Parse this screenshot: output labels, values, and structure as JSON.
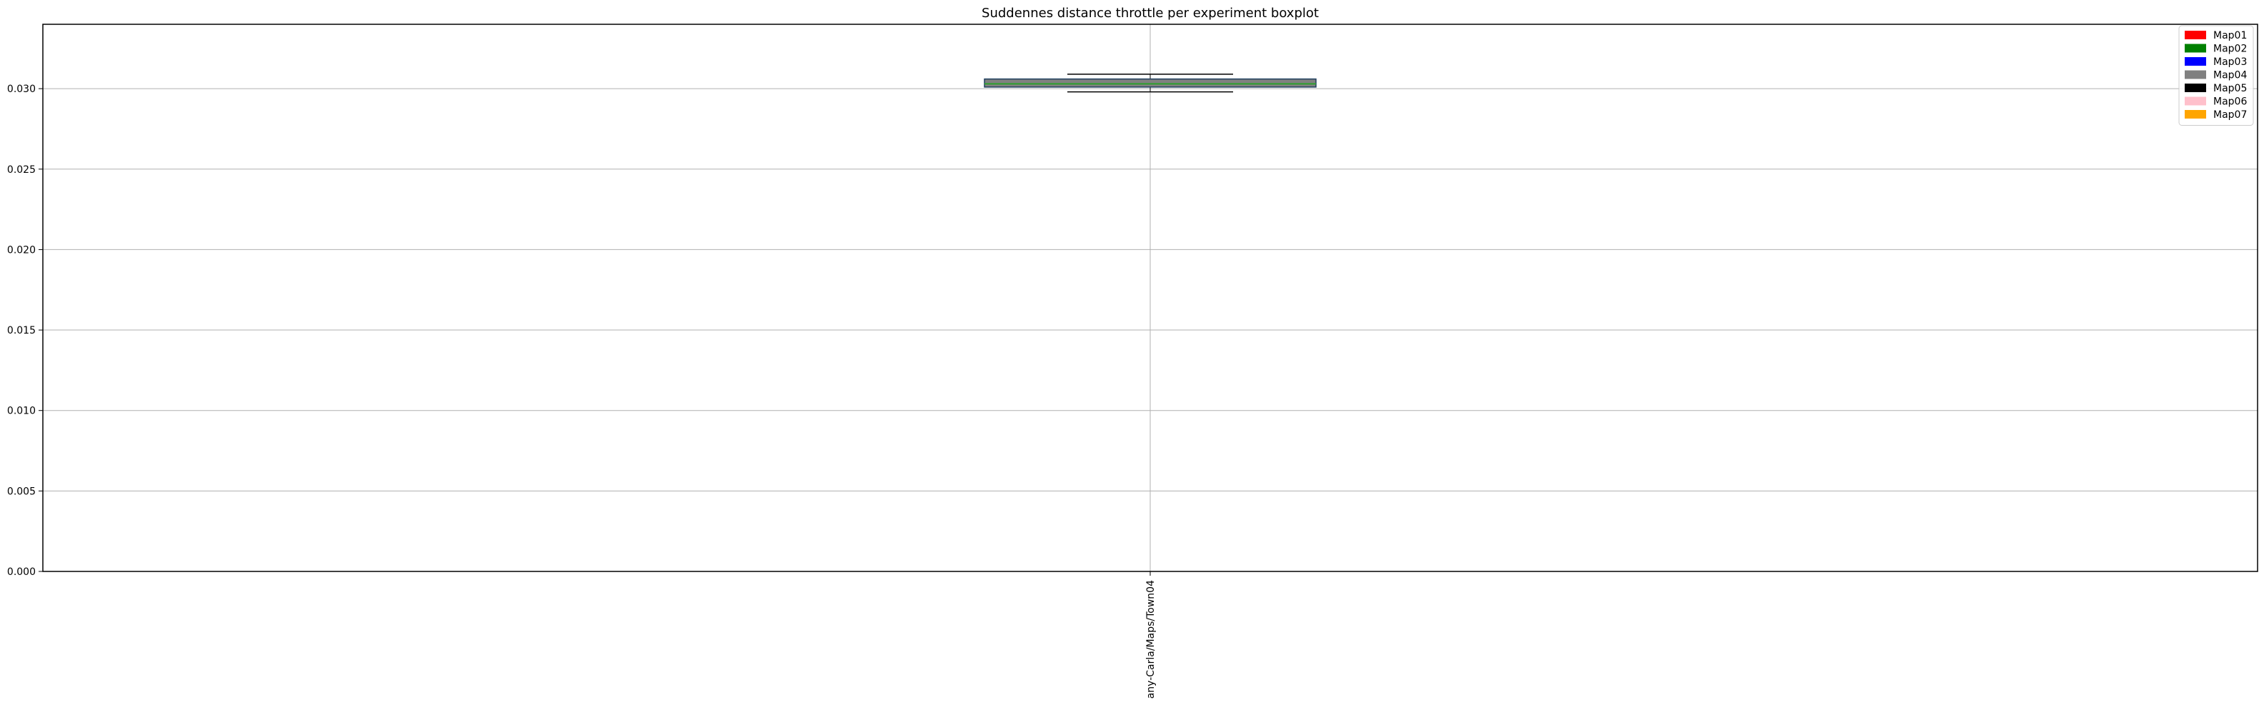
{
  "chart_data": {
    "type": "box",
    "title": "Suddennes distance throttle per experiment boxplot",
    "xlabel": "",
    "ylabel": "",
    "categories": [
      "any-Carla/Maps/Town04"
    ],
    "boxes": [
      {
        "category": "any-Carla/Maps/Town04",
        "whisker_low": 0.0298,
        "q1": 0.0301,
        "median": 0.0303,
        "q3": 0.0306,
        "whisker_high": 0.0309,
        "color": "#808080"
      }
    ],
    "ylim": [
      0,
      0.034
    ],
    "yticks": [
      0.0,
      0.005,
      0.01,
      0.015,
      0.02,
      0.025,
      0.03
    ],
    "ytick_labels": [
      "0.000",
      "0.005",
      "0.010",
      "0.015",
      "0.020",
      "0.025",
      "0.030"
    ],
    "grid": true,
    "legend": {
      "placement": "top-right",
      "entries": [
        {
          "label": "Map01",
          "color": "#ff0000"
        },
        {
          "label": "Map02",
          "color": "#008000"
        },
        {
          "label": "Map03",
          "color": "#0000ff"
        },
        {
          "label": "Map04",
          "color": "#808080"
        },
        {
          "label": "Map05",
          "color": "#000000"
        },
        {
          "label": "Map06",
          "color": "#ffc0cb"
        },
        {
          "label": "Map07",
          "color": "#ffa500"
        }
      ]
    },
    "colors": {
      "median_line": "#2ca02c",
      "whisker": "#000000",
      "grid": "#b0b0b0"
    }
  }
}
